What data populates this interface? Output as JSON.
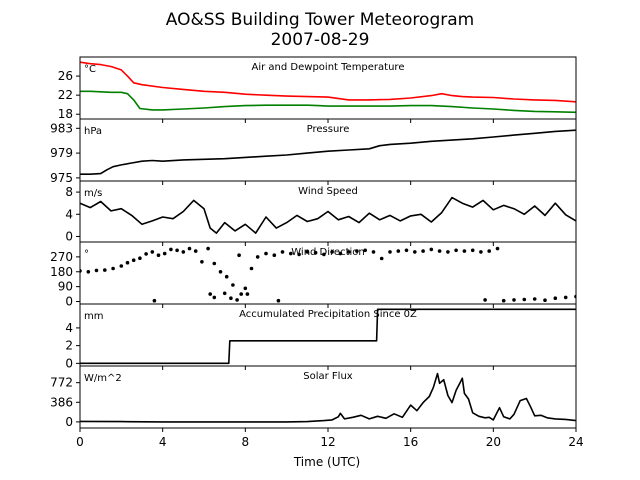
{
  "figure": {
    "title": "AO&SS Building Tower Meteorogram",
    "subtitle": "2007-08-29",
    "xlabel": "Time (UTC)"
  },
  "chart_data": [
    {
      "type": "line",
      "title": "Air and Dewpoint Temperature",
      "unit": "°C",
      "xlim": [
        0,
        24
      ],
      "ylim": [
        17,
        30
      ],
      "yticks": [
        18,
        22,
        26
      ],
      "colors": [
        "#ff0000",
        "#008000"
      ],
      "series": [
        {
          "x": [
            0,
            0.5,
            1,
            1.5,
            2,
            2.3,
            2.6,
            3,
            4,
            5,
            6,
            7,
            8,
            9,
            10,
            11,
            12,
            13,
            14,
            15,
            16,
            17,
            17.5,
            18,
            18.5,
            19,
            20,
            21,
            22,
            23,
            24
          ],
          "values": [
            28.9,
            28.6,
            28.4,
            28.0,
            27.3,
            26.0,
            24.6,
            24.2,
            23.6,
            23.2,
            22.8,
            22.6,
            22.2,
            22.0,
            21.8,
            21.7,
            21.6,
            21.0,
            21.0,
            21.1,
            21.4,
            21.9,
            22.3,
            21.9,
            21.7,
            21.6,
            21.5,
            21.2,
            21.0,
            20.9,
            20.6
          ]
        },
        {
          "x": [
            0,
            0.5,
            1,
            1.5,
            2,
            2.3,
            2.6,
            2.9,
            3.5,
            4,
            5,
            6,
            7,
            8,
            9,
            10,
            11,
            11.5,
            12,
            13,
            14,
            15,
            16,
            17,
            18,
            19,
            20,
            21,
            22,
            23,
            24
          ],
          "values": [
            22.8,
            22.8,
            22.7,
            22.6,
            22.6,
            22.3,
            21.0,
            19.2,
            18.9,
            18.9,
            19.1,
            19.3,
            19.6,
            19.8,
            19.9,
            19.9,
            19.9,
            19.8,
            19.7,
            19.7,
            19.7,
            19.7,
            19.8,
            19.8,
            19.6,
            19.3,
            19.1,
            18.8,
            18.6,
            18.5,
            18.4
          ]
        }
      ]
    },
    {
      "type": "line",
      "title": "Pressure",
      "unit": "hPa",
      "xlim": [
        0,
        24
      ],
      "ylim": [
        974.5,
        984.5
      ],
      "yticks": [
        975,
        979,
        983
      ],
      "colors": [
        "#000000"
      ],
      "series": [
        {
          "x": [
            0,
            0.5,
            1,
            1.3,
            1.6,
            2,
            2.5,
            3,
            3.5,
            4,
            5,
            6,
            7,
            8,
            9,
            10,
            11,
            12,
            13,
            14,
            14.5,
            15,
            16,
            17,
            18,
            19,
            20,
            21,
            22,
            23,
            24
          ],
          "values": [
            975.6,
            975.6,
            975.7,
            976.3,
            976.8,
            977.1,
            977.4,
            977.7,
            977.8,
            977.7,
            977.9,
            978.0,
            978.1,
            978.3,
            978.5,
            978.7,
            979.0,
            979.3,
            979.5,
            979.7,
            980.2,
            980.4,
            980.6,
            980.9,
            981.1,
            981.3,
            981.6,
            981.9,
            982.2,
            982.5,
            982.7
          ]
        }
      ]
    },
    {
      "type": "line",
      "title": "Wind Speed",
      "unit": "m/s",
      "xlim": [
        0,
        24
      ],
      "ylim": [
        -1,
        10
      ],
      "yticks": [
        0,
        4,
        8
      ],
      "colors": [
        "#000000"
      ],
      "series": [
        {
          "x": [
            0,
            0.5,
            1,
            1.5,
            2,
            2.5,
            3,
            3.5,
            4,
            4.5,
            5,
            5.5,
            6,
            6.3,
            6.6,
            7,
            7.5,
            8,
            8.5,
            9,
            9.5,
            10,
            10.5,
            11,
            11.5,
            12,
            12.5,
            13,
            13.5,
            14,
            14.5,
            15,
            15.5,
            16,
            16.5,
            17,
            17.5,
            18,
            18.5,
            19,
            19.5,
            20,
            20.5,
            21,
            21.5,
            22,
            22.5,
            23,
            23.5,
            24
          ],
          "values": [
            6.0,
            5.2,
            6.3,
            4.6,
            5.0,
            3.8,
            2.2,
            2.8,
            3.5,
            3.2,
            4.5,
            6.5,
            5.0,
            1.5,
            0.6,
            2.5,
            1.0,
            2.2,
            0.6,
            3.5,
            1.5,
            2.5,
            3.8,
            2.7,
            3.2,
            4.5,
            3.0,
            3.6,
            2.5,
            4.2,
            3.0,
            3.8,
            2.8,
            3.7,
            4.0,
            2.6,
            4.3,
            7.0,
            6.0,
            5.3,
            6.5,
            4.8,
            5.6,
            5.0,
            4.0,
            5.5,
            3.8,
            6.0,
            3.9,
            2.8
          ]
        }
      ]
    },
    {
      "type": "scatter",
      "title": "Wind Direction",
      "unit": "°",
      "xlim": [
        0,
        24
      ],
      "ylim": [
        -15,
        360
      ],
      "yticks": [
        0,
        90,
        180,
        270
      ],
      "colors": [
        "#000000"
      ],
      "series": [
        {
          "x": [
            0,
            0.4,
            0.8,
            1.2,
            1.6,
            2.0,
            2.3,
            2.6,
            2.9,
            3.2,
            3.5,
            3.8,
            4.1,
            4.4,
            4.7,
            5.0,
            5.3,
            5.6,
            5.9,
            6.2,
            6.5,
            6.8,
            7.1,
            7.4,
            7.7,
            8.0,
            8.3,
            8.6,
            9.0,
            9.4,
            9.8,
            10.2,
            10.6,
            11.0,
            11.4,
            11.8,
            12.2,
            12.6,
            13.0,
            13.4,
            13.8,
            14.2,
            14.6,
            15.0,
            15.4,
            15.8,
            16.2,
            16.6,
            17.0,
            17.4,
            17.8,
            18.2,
            18.6,
            19.0,
            19.4,
            19.8,
            20.2,
            20.5,
            21.0,
            21.5,
            22.0,
            22.5,
            23.0,
            23.5,
            24.0,
            3.6,
            6.3,
            6.5,
            7.0,
            7.3,
            7.6,
            7.8,
            8.1,
            9.6,
            19.6
          ],
          "values": [
            185,
            180,
            188,
            190,
            200,
            215,
            235,
            250,
            262,
            288,
            300,
            280,
            290,
            315,
            310,
            300,
            320,
            305,
            240,
            320,
            230,
            180,
            150,
            100,
            280,
            80,
            200,
            270,
            290,
            280,
            300,
            290,
            285,
            300,
            295,
            285,
            300,
            290,
            300,
            305,
            310,
            300,
            260,
            300,
            305,
            310,
            300,
            305,
            315,
            305,
            300,
            310,
            305,
            310,
            300,
            305,
            320,
            5,
            10,
            12,
            15,
            8,
            20,
            25,
            30,
            5,
            45,
            25,
            50,
            20,
            10,
            45,
            45,
            5,
            10
          ]
        }
      ]
    },
    {
      "type": "line",
      "title": "Accumulated Precipitation Since 0Z",
      "unit": "mm",
      "xlim": [
        0,
        24
      ],
      "ylim": [
        -0.3,
        6.7
      ],
      "yticks": [
        0,
        2,
        4
      ],
      "colors": [
        "#000000"
      ],
      "series": [
        {
          "x": [
            0,
            7.2,
            7.25,
            14.35,
            14.4,
            24
          ],
          "values": [
            0,
            0,
            2.55,
            2.55,
            6.1,
            6.1
          ]
        }
      ]
    },
    {
      "type": "line",
      "title": "Solar Flux",
      "unit": "W/m^2",
      "xlim": [
        0,
        24
      ],
      "ylim": [
        -120,
        1100
      ],
      "yticks": [
        0,
        386,
        772
      ],
      "colors": [
        "#000000"
      ],
      "series": [
        {
          "x": [
            0,
            2,
            4,
            6,
            8,
            10,
            11,
            11.8,
            12.2,
            12.5,
            12.6,
            12.8,
            13.2,
            13.6,
            14.0,
            14.4,
            14.8,
            15.2,
            15.6,
            16.0,
            16.3,
            16.6,
            16.9,
            17.1,
            17.3,
            17.4,
            17.6,
            17.8,
            18.0,
            18.2,
            18.4,
            18.5,
            18.6,
            18.8,
            19.0,
            19.3,
            19.6,
            19.8,
            20.0,
            20.3,
            20.5,
            20.8,
            21.0,
            21.3,
            21.6,
            21.8,
            22.0,
            22.3,
            22.6,
            23.0,
            23.5,
            24.0
          ],
          "values": [
            10,
            5,
            0,
            0,
            0,
            0,
            5,
            25,
            40,
            100,
            170,
            60,
            90,
            130,
            60,
            110,
            70,
            160,
            90,
            330,
            220,
            380,
            500,
            680,
            950,
            760,
            830,
            520,
            380,
            620,
            780,
            860,
            560,
            450,
            180,
            110,
            80,
            90,
            40,
            280,
            100,
            60,
            150,
            420,
            460,
            300,
            120,
            130,
            80,
            60,
            50,
            25
          ]
        }
      ]
    }
  ]
}
